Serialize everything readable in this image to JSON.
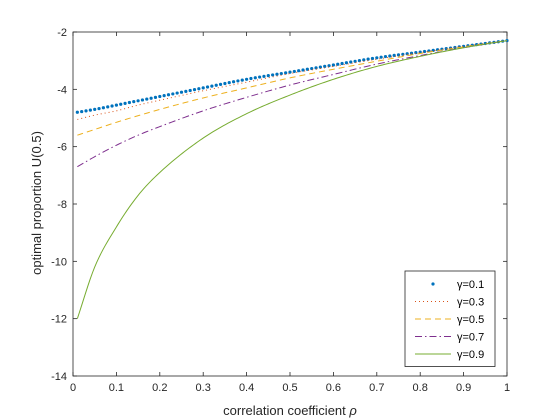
{
  "chart_data": {
    "type": "line",
    "xlabel_text": "correlation coefficient ",
    "xlabel_symbol": "ρ",
    "ylabel": "optimal proportion U(0.5)",
    "xlim": [
      0,
      1
    ],
    "ylim": [
      -14,
      -2
    ],
    "xticks": [
      0,
      0.1,
      0.2,
      0.3,
      0.4,
      0.5,
      0.6,
      0.7,
      0.8,
      0.9,
      1
    ],
    "xtick_labels": [
      "0",
      "0.1",
      "0.2",
      "0.3",
      "0.4",
      "0.5",
      "0.6",
      "0.7",
      "0.8",
      "0.9",
      "1"
    ],
    "yticks": [
      -14,
      -12,
      -10,
      -8,
      -6,
      -4,
      -2
    ],
    "ytick_labels": [
      "-14",
      "-12",
      "-10",
      "-8",
      "-6",
      "-4",
      "-2"
    ],
    "grid": false,
    "legend_position": "bottom-right",
    "x": [
      0.01,
      0.05,
      0.1,
      0.15,
      0.2,
      0.3,
      0.4,
      0.5,
      0.6,
      0.7,
      0.8,
      0.9,
      1.0
    ],
    "series": [
      {
        "name": "γ=0.1",
        "style": "dotted-markers",
        "color": "#0072BD",
        "values": [
          -4.8,
          -4.7,
          -4.55,
          -4.4,
          -4.25,
          -3.95,
          -3.65,
          -3.4,
          -3.15,
          -2.9,
          -2.7,
          -2.5,
          -2.3
        ]
      },
      {
        "name": "γ=0.3",
        "style": "dotted",
        "color": "#D95319",
        "values": [
          -5.05,
          -4.9,
          -4.75,
          -4.55,
          -4.38,
          -4.05,
          -3.75,
          -3.45,
          -3.2,
          -2.95,
          -2.72,
          -2.5,
          -2.3
        ]
      },
      {
        "name": "γ=0.5",
        "style": "dashed",
        "color": "#EDB120",
        "values": [
          -5.6,
          -5.4,
          -5.15,
          -4.92,
          -4.7,
          -4.3,
          -3.95,
          -3.6,
          -3.3,
          -3.02,
          -2.75,
          -2.52,
          -2.3
        ]
      },
      {
        "name": "γ=0.7",
        "style": "dashdot",
        "color": "#7E2F8E",
        "values": [
          -6.7,
          -6.35,
          -5.95,
          -5.6,
          -5.3,
          -4.75,
          -4.28,
          -3.85,
          -3.48,
          -3.12,
          -2.82,
          -2.55,
          -2.3
        ]
      },
      {
        "name": "γ=0.9",
        "style": "solid",
        "color": "#77AC30",
        "values": [
          -12.0,
          -10.2,
          -8.8,
          -7.7,
          -6.9,
          -5.7,
          -4.85,
          -4.2,
          -3.65,
          -3.2,
          -2.85,
          -2.55,
          -2.3
        ]
      }
    ]
  }
}
